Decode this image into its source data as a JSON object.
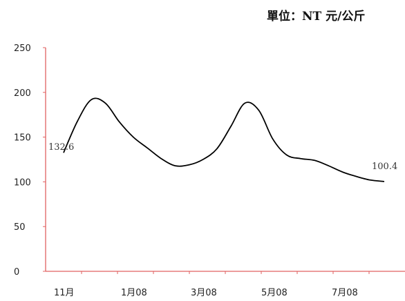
{
  "chart_data": {
    "type": "line",
    "title": "",
    "unit_label": "單位：NT 元/公斤",
    "xlabel": "",
    "ylabel": "",
    "ylim": [
      0,
      250
    ],
    "y_ticks": [
      0,
      50,
      100,
      150,
      200,
      250
    ],
    "x_tick_labels": [
      "11月",
      "1月08",
      "3月08",
      "5月08",
      "7月08"
    ],
    "grid": false,
    "legend": "none",
    "colors": {
      "axis": "#e06060",
      "line": "#000000"
    },
    "series": [
      {
        "values": [
          132.6,
          168,
          192,
          188,
          167,
          150,
          138,
          126,
          118,
          119,
          125,
          137,
          162,
          188,
          180,
          148,
          130,
          126,
          124,
          118,
          111,
          106,
          102,
          100.4
        ]
      }
    ],
    "data_labels": [
      {
        "index": 0,
        "text": "132.6"
      },
      {
        "index": 23,
        "text": "100.4"
      }
    ]
  }
}
